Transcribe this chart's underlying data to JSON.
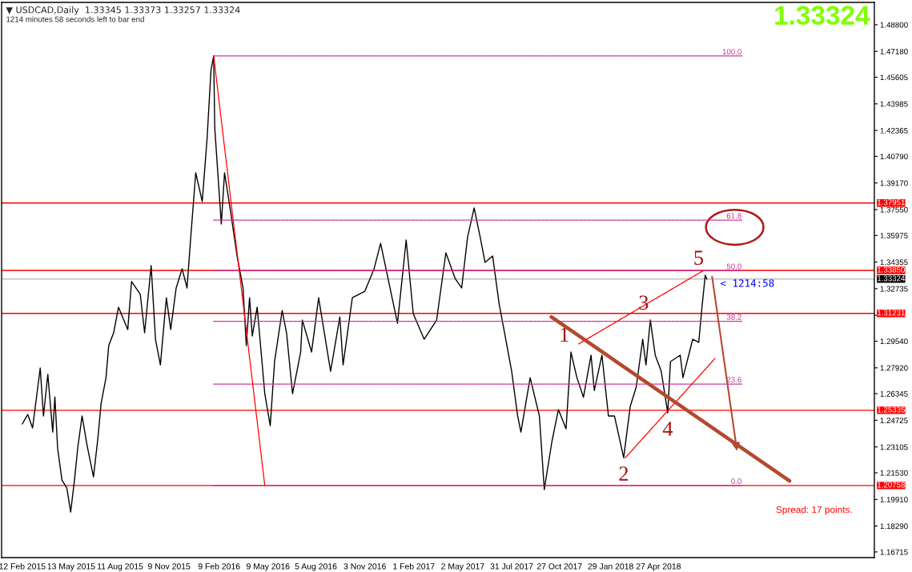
{
  "chart_data": {
    "type": "line",
    "title": "▼ USDCAD,Daily  1.33345 1.33373 1.33257 1.33324",
    "subtitle": "1214 minutes 58 seconds left to bar end",
    "annotations": [
      "1.33324",
      "Spread: 17 points.",
      {
        "text": "< 1214:58",
        "x": "2018-07-25",
        "y": 1.3332
      },
      {
        "text": "1",
        "x": "2017-11-17",
        "y": 1.2888
      },
      {
        "text": "2",
        "x": "2018-02-22",
        "y": 1.2245
      },
      {
        "text": "3",
        "x": "2018-04-12",
        "y": 1.3083
      },
      {
        "text": "4",
        "x": "2018-05-14",
        "y": 1.2518
      },
      {
        "text": "5",
        "x": "2018-07-22",
        "y": 1.3356
      }
    ],
    "series": [
      {
        "type": "line",
        "color": "#000000",
        "line_style": "solid",
        "x": [
          "2015-02-12",
          "2015-02-22",
          "2015-03-03",
          "2015-03-17",
          "2015-03-23",
          "2015-03-31",
          "2015-04-09",
          "2015-04-13",
          "2015-04-18",
          "2015-04-26",
          "2015-05-05",
          "2015-05-12",
          "2015-05-19",
          "2015-05-25",
          "2015-06-02",
          "2015-06-11",
          "2015-06-23",
          "2015-07-01",
          "2015-07-07",
          "2015-07-16",
          "2015-07-21",
          "2015-07-30",
          "2015-08-08",
          "2015-08-25",
          "2015-09-01",
          "2015-09-17",
          "2015-09-25",
          "2015-10-07",
          "2015-10-15",
          "2015-10-24",
          "2015-11-04",
          "2015-11-12",
          "2015-11-22",
          "2015-12-03",
          "2015-12-12",
          "2015-12-18",
          "2015-12-28",
          "2016-01-09",
          "2016-01-18",
          "2016-01-25",
          "2016-01-30",
          "2016-02-01",
          "2016-02-13",
          "2016-02-19",
          "2016-03-01",
          "2016-03-13",
          "2016-03-24",
          "2016-03-30",
          "2016-04-05",
          "2016-04-10",
          "2016-04-19",
          "2016-05-03",
          "2016-05-13",
          "2016-05-21",
          "2016-06-04",
          "2016-06-12",
          "2016-06-23",
          "2016-07-08",
          "2016-07-11",
          "2016-07-28",
          "2016-08-10",
          "2016-09-01",
          "2016-09-18",
          "2016-09-24",
          "2016-10-11",
          "2016-11-03",
          "2016-11-20",
          "2016-12-02",
          "2017-01-02",
          "2017-01-18",
          "2017-01-31",
          "2017-02-20",
          "2017-03-15",
          "2017-04-01",
          "2017-04-18",
          "2017-04-30",
          "2017-05-11",
          "2017-05-23",
          "2017-06-03",
          "2017-06-12",
          "2017-06-26",
          "2017-07-08",
          "2017-07-19",
          "2017-07-31",
          "2017-08-11",
          "2017-08-17",
          "2017-09-03",
          "2017-09-20",
          "2017-09-29",
          "2017-10-13",
          "2017-10-25",
          "2017-11-08",
          "2017-11-17",
          "2017-11-28",
          "2017-12-10",
          "2017-12-24",
          "2017-12-30",
          "2018-01-13",
          "2018-01-25",
          "2018-02-05",
          "2018-02-22",
          "2018-03-06",
          "2018-03-17",
          "2018-03-29",
          "2018-04-04",
          "2018-04-12",
          "2018-04-21",
          "2018-05-02",
          "2018-05-14",
          "2018-05-19",
          "2018-06-06",
          "2018-06-11",
          "2018-06-29",
          "2018-07-10",
          "2018-07-16",
          "2018-07-22",
          "2018-07-25"
        ],
        "values": [
          1.245,
          1.2508,
          1.2426,
          1.2791,
          1.2499,
          1.2752,
          1.2401,
          1.2615,
          1.2304,
          1.2109,
          1.206,
          1.1914,
          1.2109,
          1.2304,
          1.2499,
          1.2323,
          1.2128,
          1.2362,
          1.2576,
          1.2732,
          1.2927,
          1.3005,
          1.3161,
          1.3025,
          1.3317,
          1.3239,
          1.3005,
          1.3414,
          1.2966,
          1.281,
          1.3219,
          1.3025,
          1.3278,
          1.3395,
          1.3278,
          1.355,
          1.3979,
          1.3804,
          1.4193,
          1.4602,
          1.469,
          1.4252,
          1.3667,
          1.3979,
          1.3745,
          1.3473,
          1.3278,
          1.2927,
          1.3219,
          1.2986,
          1.3161,
          1.2635,
          1.244,
          1.283,
          1.3141,
          1.3005,
          1.2635,
          1.2888,
          1.3083,
          1.2888,
          1.3219,
          1.2771,
          1.3102,
          1.281,
          1.3219,
          1.3258,
          1.3395,
          1.355,
          1.3063,
          1.357,
          1.3122,
          1.2966,
          1.3083,
          1.3492,
          1.3336,
          1.3278,
          1.3589,
          1.3765,
          1.3589,
          1.3434,
          1.3473,
          1.318,
          1.2986,
          1.2771,
          1.2499,
          1.2401,
          1.2732,
          1.2499,
          1.2051,
          1.2343,
          1.2538,
          1.2421,
          1.2888,
          1.2732,
          1.2613,
          1.2869,
          1.2654,
          1.2869,
          1.2499,
          1.2499,
          1.2245,
          1.2557,
          1.2674,
          1.2966,
          1.281,
          1.3083,
          1.2869,
          1.2771,
          1.2518,
          1.283,
          1.2869,
          1.2732,
          1.2966,
          1.2947,
          1.3161,
          1.3356,
          1.3332
        ]
      },
      {
        "type": "line",
        "name": "100.0",
        "color": "#cc3399",
        "line_style": "dashed",
        "x": [
          "2016-01-30",
          "2018-09-27"
        ],
        "values": [
          1.469,
          1.469
        ]
      },
      {
        "type": "line",
        "name": "61.8",
        "color": "#cc3399",
        "line_style": "dashed",
        "x": [
          "2016-01-30",
          "2018-09-27"
        ],
        "values": [
          1.3691,
          1.3691
        ]
      },
      {
        "type": "line",
        "name": "50.0",
        "color": "#cc3399",
        "line_style": "dashed",
        "x": [
          "2016-01-30",
          "2018-09-27"
        ],
        "values": [
          1.3383,
          1.3383
        ]
      },
      {
        "type": "line",
        "name": "38.2",
        "color": "#cc3399",
        "line_style": "dashed",
        "x": [
          "2016-01-30",
          "2018-09-27"
        ],
        "values": [
          1.3075,
          1.3075
        ]
      },
      {
        "type": "line",
        "name": "23.6",
        "color": "#cc3399",
        "line_style": "dashed",
        "x": [
          "2016-01-30",
          "2018-09-27"
        ],
        "values": [
          1.2693,
          1.2693
        ]
      },
      {
        "type": "line",
        "name": "0.0",
        "color": "#cc3399",
        "line_style": "dashed",
        "x": [
          "2016-01-30",
          "2018-09-27"
        ],
        "values": [
          1.2076,
          1.2076
        ]
      },
      {
        "type": "line",
        "color": "#ff0000",
        "line_style": "dotted",
        "x": [
          "2016-01-30",
          "2016-05-03"
        ],
        "values": [
          1.469,
          1.2076
        ]
      },
      {
        "type": "line",
        "color": "#ff0000",
        "line_style": "dotted",
        "x": [
          "2017-12-01",
          "2018-07-19"
        ],
        "values": [
          1.2937,
          1.3385
        ]
      },
      {
        "type": "line",
        "color": "#ff0000",
        "line_style": "dotted",
        "x": [
          "2018-02-25",
          "2018-08-09"
        ],
        "values": [
          1.2245,
          1.2849
        ]
      },
      {
        "type": "line",
        "color": "#b5482e",
        "line_style": "solid",
        "x": [
          "2017-10-12",
          "2018-12-24"
        ],
        "values": [
          1.3102,
          1.2104
        ]
      }
    ],
    "ref_lines": [
      {
        "axis": "y",
        "value": 1.37951,
        "label": "1.37951",
        "color": "#ff0000"
      },
      {
        "axis": "y",
        "value": 1.3385,
        "label": "1.33850",
        "color": "#ff0000"
      },
      {
        "axis": "y",
        "value": 1.33324,
        "label": "1.33324",
        "color": "#c0c0c0"
      },
      {
        "axis": "y",
        "value": 1.31231,
        "label": "1.31231",
        "color": "#ff0000"
      },
      {
        "axis": "y",
        "value": 1.25335,
        "label": "1.25335",
        "color": "#ff0000"
      },
      {
        "axis": "y",
        "value": 1.20758,
        "label": "1.20758",
        "color": "#ff0000"
      }
    ],
    "xlim": [
      "2015-01-05",
      "2019-05-29"
    ],
    "xticks": [
      {
        "value": "2015-02-12",
        "label": "12 Feb 2015"
      },
      {
        "value": "2015-05-13",
        "label": "13 May 2015"
      },
      {
        "value": "2015-08-11",
        "label": "11 Aug 2015"
      },
      {
        "value": "2015-11-09",
        "label": "9 Nov 2015"
      },
      {
        "value": "2016-02-09",
        "label": "9 Feb 2016"
      },
      {
        "value": "2016-05-09",
        "label": "9 May 2016"
      },
      {
        "value": "2016-08-05",
        "label": "5 Aug 2016"
      },
      {
        "value": "2016-11-03",
        "label": "3 Nov 2016"
      },
      {
        "value": "2017-02-01",
        "label": "1 Feb 2017"
      },
      {
        "value": "2017-05-02",
        "label": "2 May 2017"
      },
      {
        "value": "2017-07-31",
        "label": "31 Jul 2017"
      },
      {
        "value": "2017-10-27",
        "label": "27 Oct 2017"
      },
      {
        "value": "2018-01-29",
        "label": "29 Jan 2018"
      },
      {
        "value": "2018-04-27",
        "label": "27 Apr 2018"
      }
    ],
    "ylim": [
      1.1637,
      1.5016
    ],
    "yticks": [
      {
        "value": 1.488,
        "label": "1.48800"
      },
      {
        "value": 1.4718,
        "label": "1.47180"
      },
      {
        "value": 1.45605,
        "label": "1.45605"
      },
      {
        "value": 1.43985,
        "label": "1.43985"
      },
      {
        "value": 1.42365,
        "label": "1.42365"
      },
      {
        "value": 1.4079,
        "label": "1.40790"
      },
      {
        "value": 1.3917,
        "label": "1.39170"
      },
      {
        "value": 1.3755,
        "label": "1.37550"
      },
      {
        "value": 1.35975,
        "label": "1.35975"
      },
      {
        "value": 1.34355,
        "label": "1.34355"
      },
      {
        "value": 1.32735,
        "label": "1.32735"
      },
      {
        "value": 1.31115,
        "label": null
      },
      {
        "value": 1.2954,
        "label": "1.29540"
      },
      {
        "value": 1.2792,
        "label": "1.27920"
      },
      {
        "value": 1.26345,
        "label": "1.26345"
      },
      {
        "value": 1.24725,
        "label": "1.24725"
      },
      {
        "value": 1.23105,
        "label": "1.23105"
      },
      {
        "value": 1.2153,
        "label": "1.21530"
      },
      {
        "value": 1.1991,
        "label": "1.19910"
      },
      {
        "value": 1.1829,
        "label": "1.18290"
      },
      {
        "value": 1.16715,
        "label": "1.16715"
      }
    ],
    "grid": false
  }
}
